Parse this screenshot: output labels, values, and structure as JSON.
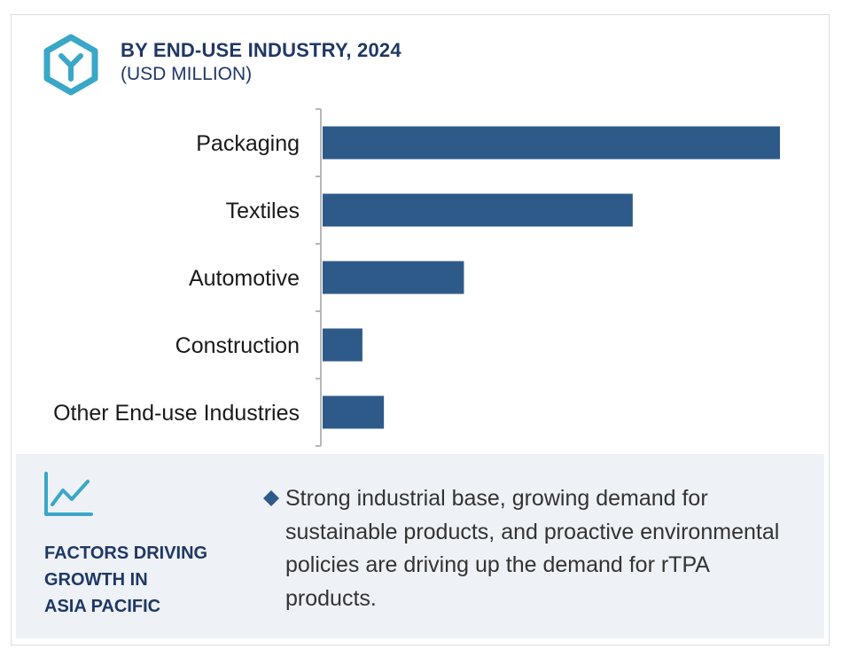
{
  "header": {
    "title": "BY END-USE INDUSTRY, 2024",
    "subtitle": "(USD MILLION)",
    "icon": "hexagon-y-logo-icon"
  },
  "chart_data": {
    "type": "bar",
    "orientation": "horizontal",
    "title": "BY END-USE INDUSTRY, 2024",
    "subtitle": "(USD MILLION)",
    "categories": [
      "Packaging",
      "Textiles",
      "Automotive",
      "Construction",
      "Other End-use Industries"
    ],
    "values": [
      100,
      67.8,
      30.9,
      8.7,
      13.4
    ],
    "grid": false,
    "legend": "none",
    "value_axis_shown": false,
    "bar_color": "#2e5a8a",
    "axis_color": "#b7b7b7"
  },
  "factors": {
    "icon": "line-chart-growth-icon",
    "title_lines": [
      "FACTORS DRIVING",
      "GROWTH IN",
      "ASIA PACIFIC"
    ],
    "bullet_icon": "diamond-bullet-icon",
    "bullet_text": "Strong industrial base, growing demand for sustainable products, and proactive environmental policies are driving up the demand for rTPA products."
  },
  "colors": {
    "accent_teal": "#3aa7c7",
    "title_navy": "#1f3864",
    "panel_bg": "#eef1f5",
    "bullet_blue": "#2e5a8a"
  }
}
